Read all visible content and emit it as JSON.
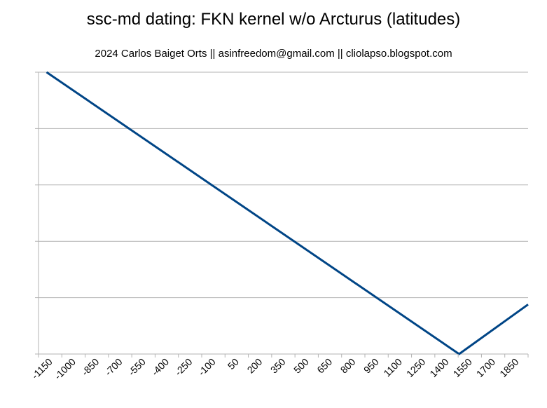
{
  "chart_data": {
    "type": "line",
    "title": "ssc-md dating: FKN kernel w/o Arcturus (latitudes)",
    "subtitle": "2024 Carlos Baiget Orts || asinfreedom@gmail.com || cliolapso.blogspot.com",
    "xlabel": "",
    "ylabel": "",
    "x_tick_labels": [
      "-1150",
      "-1000",
      "-850",
      "-700",
      "-550",
      "-400",
      "-250",
      "-100",
      "50",
      "200",
      "350",
      "500",
      "650",
      "800",
      "950",
      "1100",
      "1250",
      "1400",
      "1550",
      "1700",
      "1850"
    ],
    "xlim": [
      -1150,
      1900
    ],
    "ylim": [
      0,
      5
    ],
    "y_gridlines": [
      0,
      1,
      2,
      3,
      4,
      5
    ],
    "grid": true,
    "legend": "none",
    "series": [
      {
        "color": "#004586",
        "x": [
          -1100,
          1470,
          1910
        ],
        "y": [
          5.0,
          0.0,
          0.9
        ]
      }
    ]
  }
}
